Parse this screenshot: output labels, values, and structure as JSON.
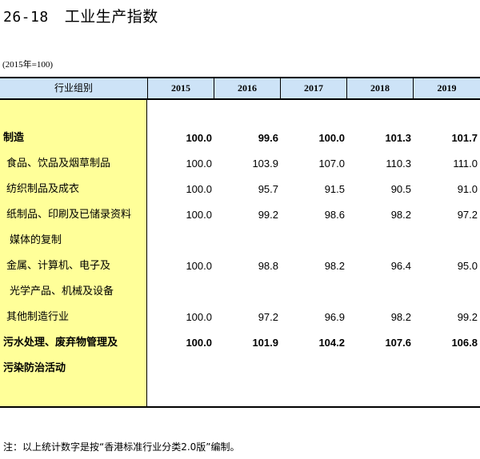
{
  "title": {
    "number": "26-18",
    "text": "工业生产指数"
  },
  "subtitle": "(2015年=100)",
  "table": {
    "stub_header": "行业组别",
    "years": [
      "2015",
      "2016",
      "2017",
      "2018",
      "2019"
    ],
    "rows": [
      {
        "label": "制造",
        "bold": true,
        "values": [
          "100.0",
          "99.6",
          "100.0",
          "101.3",
          "101.7"
        ]
      },
      {
        "label": "食品、饮品及烟草制品",
        "bold": false,
        "values": [
          "100.0",
          "103.9",
          "107.0",
          "110.3",
          "111.0"
        ]
      },
      {
        "label": "纺织制品及成衣",
        "bold": false,
        "values": [
          "100.0",
          "95.7",
          "91.5",
          "90.5",
          "91.0"
        ]
      },
      {
        "label": "纸制品、印刷及已储录资料",
        "bold": false,
        "values": [
          "100.0",
          "99.2",
          "98.6",
          "98.2",
          "97.2"
        ]
      },
      {
        "label": "媒体的复制",
        "bold": false,
        "values": []
      },
      {
        "label": "金属、计算机、电子及",
        "bold": false,
        "values": [
          "100.0",
          "98.8",
          "98.2",
          "96.4",
          "95.0"
        ]
      },
      {
        "label": "光学产品、机械及设备",
        "bold": false,
        "values": []
      },
      {
        "label": "其他制造行业",
        "bold": false,
        "values": [
          "100.0",
          "97.2",
          "96.9",
          "98.2",
          "99.2"
        ]
      },
      {
        "label": "污水处理、废弃物管理及",
        "bold": true,
        "values": [
          "100.0",
          "101.9",
          "104.2",
          "107.6",
          "106.8"
        ]
      },
      {
        "label": "污染防治活动",
        "bold": true,
        "values": []
      }
    ]
  },
  "note": "注：以上统计数字是按“香港标准行业分类2.0版”编制。"
}
